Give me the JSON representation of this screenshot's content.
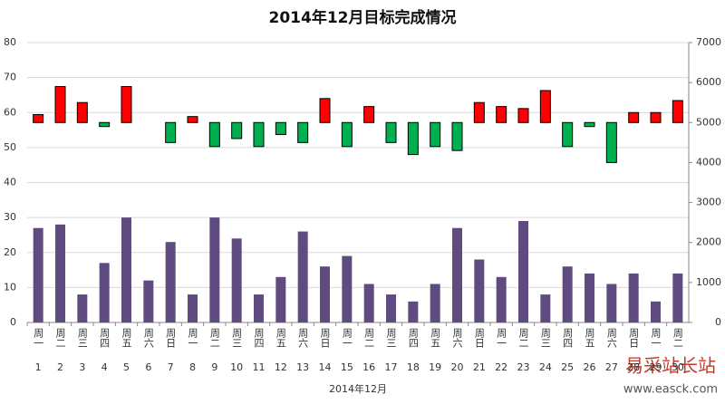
{
  "chart_data": {
    "type": "bar_float",
    "title": "2014年12月目标完成情况",
    "x_label": "2014年12月",
    "categories": [
      "1",
      "2",
      "3",
      "4",
      "5",
      "6",
      "7",
      "8",
      "9",
      "10",
      "11",
      "12",
      "13",
      "14",
      "15",
      "16",
      "17",
      "18",
      "19",
      "20",
      "21",
      "22",
      "23",
      "24",
      "25",
      "26",
      "27",
      "28",
      "29",
      "30"
    ],
    "weekdays": [
      "周一",
      "周二",
      "周三",
      "周四",
      "周五",
      "周六",
      "周日",
      "周一",
      "周二",
      "周三",
      "周四",
      "周五",
      "周六",
      "周日",
      "周一",
      "周二",
      "周三",
      "周四",
      "周五",
      "周六",
      "周日",
      "周一",
      "周二",
      "周三",
      "周四",
      "周五",
      "周六",
      "周日",
      "周一",
      "周二"
    ],
    "series": [
      {
        "color": "#5f4b80",
        "values": [
          27,
          28,
          8,
          17,
          30,
          12,
          23,
          8,
          30,
          24,
          8,
          13,
          26,
          16,
          19,
          11,
          8,
          6,
          11,
          27,
          18,
          13,
          29,
          8,
          16,
          14,
          11,
          14,
          6,
          14
        ]
      },
      {
        "axis": "y2",
        "baseline": 5000,
        "up_color": "#ff0000",
        "down_color": "#00b050",
        "values": [
          5200,
          5900,
          5500,
          4900,
          5900,
          5000,
          4500,
          5150,
          4400,
          4600,
          4400,
          4700,
          4500,
          5600,
          4400,
          5400,
          4500,
          4200,
          4400,
          4300,
          5500,
          5400,
          5350,
          5800,
          4400,
          4900,
          4000,
          5250,
          5250,
          5550
        ]
      }
    ],
    "ylim": [
      0,
      80
    ],
    "yticks": [
      0,
      10,
      20,
      30,
      40,
      50,
      60,
      70,
      80
    ],
    "y2lim": [
      0,
      7000
    ],
    "y2ticks": [
      0,
      1000,
      2000,
      3000,
      4000,
      5000,
      6000,
      7000
    ],
    "grid": true,
    "watermark": [
      "易采站长站",
      "www.easck.com"
    ]
  }
}
